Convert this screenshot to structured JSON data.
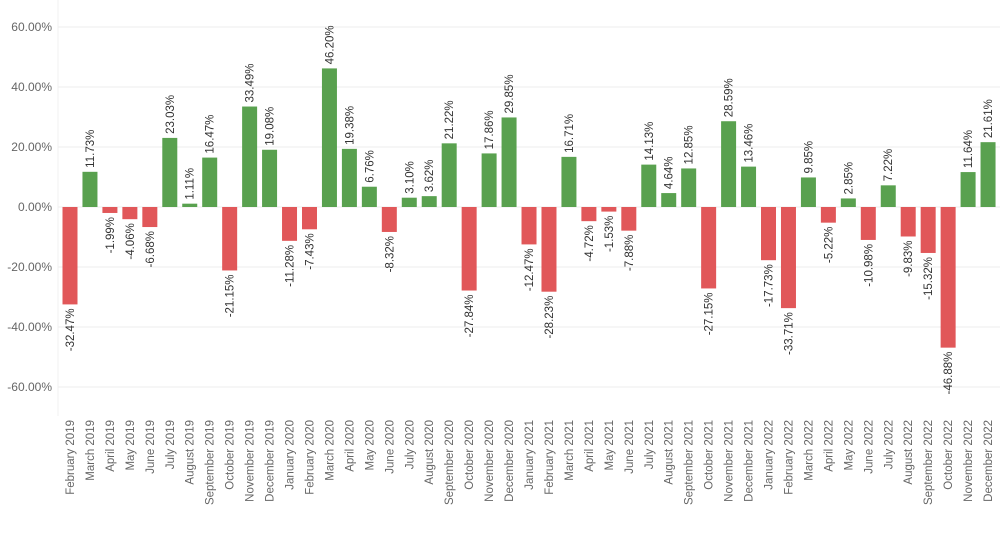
{
  "colors": {
    "positive": "#59A14F",
    "negative": "#E15759",
    "grid": "#ececec",
    "axis_text": "#666666",
    "label_text": "#333333"
  },
  "chart_data": {
    "type": "bar",
    "ylim": [
      -70,
      70
    ],
    "yticks": [
      -60,
      -40,
      -20,
      0,
      20,
      40,
      60
    ],
    "ytick_labels": [
      "-60.00%",
      "-40.00%",
      "-20.00%",
      "0.00%",
      "20.00%",
      "40.00%",
      "60.00%"
    ],
    "grid": true,
    "categories": [
      "February 2019",
      "March 2019",
      "April 2019",
      "May 2019",
      "June 2019",
      "July 2019",
      "August 2019",
      "September 2019",
      "October 2019",
      "November 2019",
      "December 2019",
      "January 2020",
      "February 2020",
      "March 2020",
      "April 2020",
      "May 2020",
      "June 2020",
      "July 2020",
      "August 2020",
      "September 2020",
      "October 2020",
      "November 2020",
      "December 2020",
      "January 2021",
      "February 2021",
      "March 2021",
      "April 2021",
      "May 2021",
      "June 2021",
      "July 2021",
      "August 2021",
      "September 2021",
      "October 2021",
      "November 2021",
      "December 2021",
      "January 2022",
      "February 2022",
      "March 2022",
      "April 2022",
      "May 2022",
      "June 2022",
      "July 2022",
      "August 2022",
      "September 2022",
      "October 2022",
      "November 2022",
      "December 2022"
    ],
    "values": [
      -32.47,
      11.73,
      -1.99,
      -4.06,
      -6.68,
      23.03,
      1.11,
      16.47,
      -21.15,
      33.49,
      19.08,
      -11.28,
      -7.43,
      46.2,
      19.38,
      6.76,
      -8.32,
      3.1,
      3.62,
      21.22,
      -27.84,
      17.86,
      29.85,
      -12.47,
      -28.23,
      16.71,
      -4.72,
      -1.53,
      -7.88,
      14.13,
      4.64,
      12.85,
      -27.15,
      28.59,
      13.46,
      -17.73,
      -33.71,
      9.85,
      -5.22,
      2.85,
      -10.98,
      7.22,
      -9.83,
      -15.32,
      -46.88,
      11.64,
      21.61
    ],
    "labels": [
      "-32.47%",
      "11.73%",
      "-1.99%",
      "-4.06%",
      "-6.68%",
      "23.03%",
      "1.11%",
      "16.47%",
      "-21.15%",
      "33.49%",
      "19.08%",
      "-11.28%",
      "-7.43%",
      "46.20%",
      "19.38%",
      "6.76%",
      "-8.32%",
      "3.10%",
      "3.62%",
      "21.22%",
      "-27.84%",
      "17.86%",
      "29.85%",
      "-12.47%",
      "-28.23%",
      "16.71%",
      "-4.72%",
      "-1.53%",
      "-7.88%",
      "14.13%",
      "4.64%",
      "12.85%",
      "-27.15%",
      "28.59%",
      "13.46%",
      "-17.73%",
      "-33.71%",
      "9.85%",
      "-5.22%",
      "2.85%",
      "-10.98%",
      "7.22%",
      "-9.83%",
      "-15.32%",
      "-46.88%",
      "11.64%",
      "21.61%"
    ]
  }
}
